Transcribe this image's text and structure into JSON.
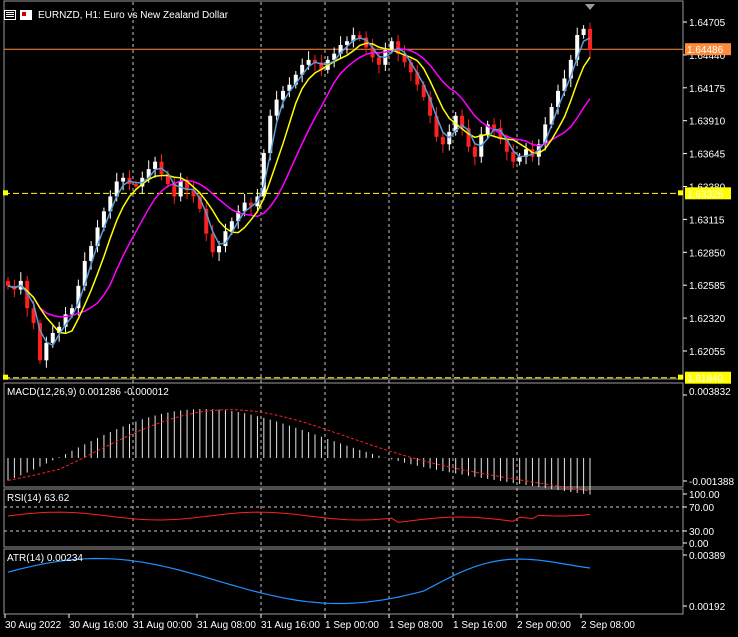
{
  "chart": {
    "symbol_title": "EURNZD, H1:  Euro vs New Zealand Dollar",
    "current_price_label": "1.64486",
    "hline_label_1": "1.63325",
    "hline_label_2": "1.61840",
    "price_scale": [
      "1.64705",
      "1.64440",
      "1.64175",
      "1.63910",
      "1.63645",
      "1.63380",
      "1.63115",
      "1.62850",
      "1.62585",
      "1.62320",
      "1.62055"
    ],
    "macd_label": "MACD(12,26,9) 0.001286 -0.000012",
    "macd_scale": [
      "0.003832",
      "-0.001388"
    ],
    "rsi_label": "RSI(14) 63.62",
    "rsi_scale": [
      "100.00",
      "70.00",
      "30.00",
      "0.00"
    ],
    "atr_label": "ATR(14) 0.00234",
    "atr_scale": [
      "0.00389",
      "0.00192"
    ],
    "time_axis": [
      "30 Aug 2022",
      "30 Aug 16:00",
      "31 Aug 00:00",
      "31 Aug 08:00",
      "31 Aug 16:00",
      "1 Sep 00:00",
      "1 Sep 08:00",
      "1 Sep 16:00",
      "2 Sep 00:00",
      "2 Sep 08:00"
    ]
  },
  "colors": {
    "background": "#000000",
    "bull_candle": "#ffffff",
    "bear_candle": "#ff2020",
    "ma_fast": "#5b9bd5",
    "ma_mid": "#ffff00",
    "ma_slow": "#ff00ff",
    "hline": "#ffff00",
    "current_price_line": "#ff8c3a",
    "macd_signal": "#ff2020",
    "rsi_line": "#ff2020",
    "atr_line": "#1e90ff",
    "grid": "#c8c8c8"
  }
}
